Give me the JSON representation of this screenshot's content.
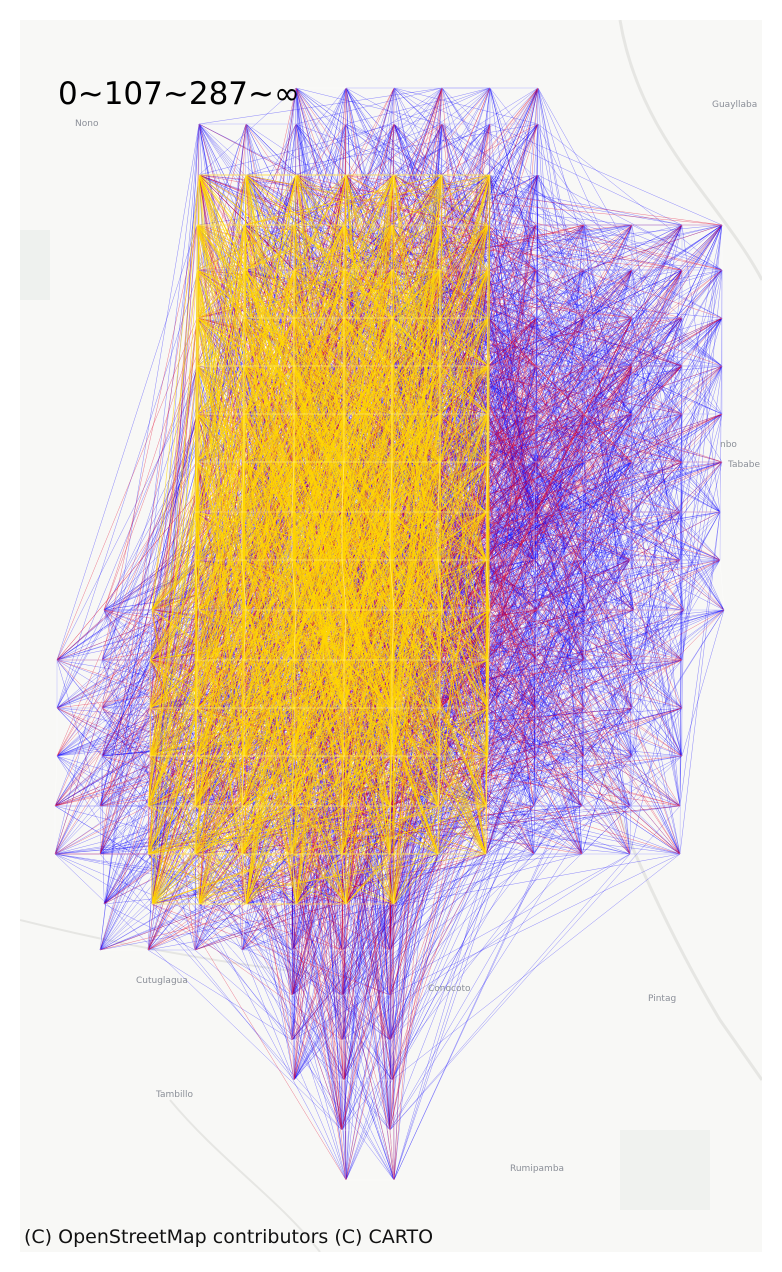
{
  "legend": {
    "ranges_label": "0~107~287~∞"
  },
  "attribution": "(C) OpenStreetMap contributors (C) CARTO",
  "places": {
    "nono": "Nono",
    "guayllabamba": "Guayllaba",
    "tababela_1": "nbo",
    "tababela_2": "Tababe",
    "cutuglagua": "Cutuglagua",
    "conocoto": "Conocoto",
    "pintag": "Pintag",
    "tambillo": "Tambillo",
    "rumipamba": "Rumipamba"
  },
  "colors": {
    "low": "#ffd700",
    "mid": "#e0002a",
    "high": "#0a00ff",
    "basemap": "#f8f8f6"
  }
}
